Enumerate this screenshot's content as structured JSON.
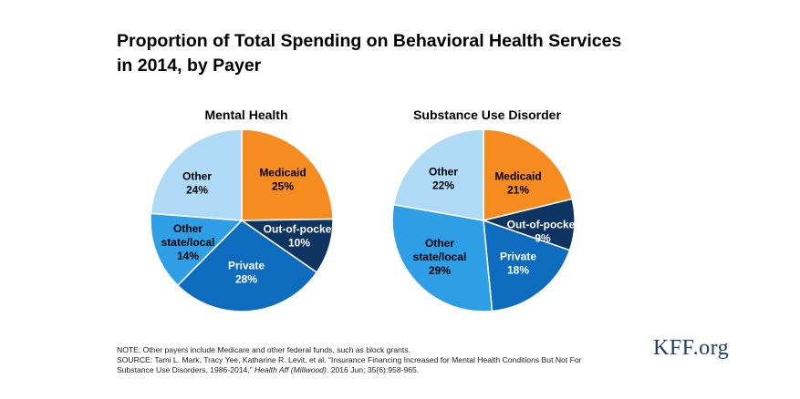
{
  "title": {
    "line1": "Proportion of Total Spending on Behavioral Health Services",
    "line2": "in 2014, by Payer"
  },
  "colors": {
    "medicaid": "#f68b1f",
    "out_of_pocket": "#0e3461",
    "private": "#0d6cbd",
    "other_state_local": "#2e9fe6",
    "other": "#aedaf5"
  },
  "chart_data": [
    {
      "type": "pie",
      "title": "Mental Health",
      "slices": [
        {
          "label": "Medicaid",
          "value": 25,
          "color": "#f68b1f",
          "text_color": "#000000"
        },
        {
          "label": "Out-of-pocket",
          "value": 10,
          "color": "#0e3461",
          "text_color": "#ffffff"
        },
        {
          "label": "Private",
          "value": 28,
          "color": "#0d6cbd",
          "text_color": "#ffffff"
        },
        {
          "label": "Other state/local",
          "value": 14,
          "color": "#2e9fe6",
          "text_color": "#000000"
        },
        {
          "label": "Other",
          "value": 24,
          "color": "#aedaf5",
          "text_color": "#000000"
        }
      ]
    },
    {
      "type": "pie",
      "title": "Substance Use Disorder",
      "slices": [
        {
          "label": "Medicaid",
          "value": 21,
          "color": "#f68b1f",
          "text_color": "#000000"
        },
        {
          "label": "Out-of-pocket",
          "value": 9,
          "color": "#0e3461",
          "text_color": "#ffffff"
        },
        {
          "label": "Private",
          "value": 18,
          "color": "#0d6cbd",
          "text_color": "#ffffff"
        },
        {
          "label": "Other state/local",
          "value": 29,
          "color": "#2e9fe6",
          "text_color": "#000000"
        },
        {
          "label": "Other",
          "value": 22,
          "color": "#aedaf5",
          "text_color": "#000000"
        }
      ]
    }
  ],
  "labels": {
    "mh": {
      "medicaid": [
        "Medicaid",
        "25%"
      ],
      "oop": [
        "Out-of-pocket",
        "10%"
      ],
      "private": [
        "Private",
        "28%"
      ],
      "osl": [
        "Other",
        "state/local",
        "14%"
      ],
      "other": [
        "Other",
        "24%"
      ]
    },
    "sud": {
      "medicaid": [
        "Medicaid",
        "21%"
      ],
      "oop": [
        "Out-of-pocket",
        "9%"
      ],
      "private": [
        "Private",
        "18%"
      ],
      "osl": [
        "Other",
        "state/local",
        "29%"
      ],
      "other": [
        "Other",
        "22%"
      ]
    }
  },
  "note": {
    "line1": "NOTE: Other payers include Medicare and other federal funds, such as block grants.",
    "line2": "SOURCE: Tami L. Mark, Tracy Yee, Katharine R. Levit, et al. “Insurance Financing Increased for Mental Health Conditions But Not For",
    "line3_pre": "Substance Use Disorders, 1986-2014,” ",
    "line3_journal": "Health Aff (Millwood)",
    "line3_post": ". 2016 Jun; 35(6):958-965."
  },
  "logo": "KFF.org"
}
